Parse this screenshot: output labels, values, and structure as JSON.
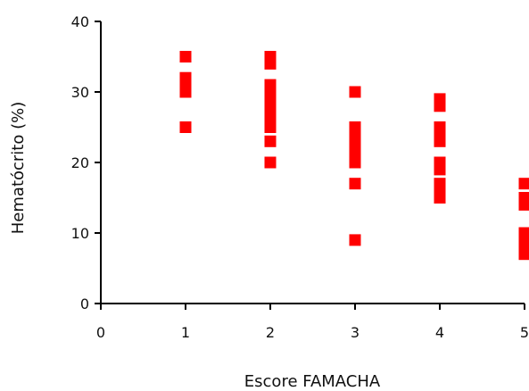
{
  "chart_data": {
    "type": "scatter",
    "xlabel": "Escore FAMACHA",
    "ylabel": "Hematócrito (%)",
    "xlim": [
      0,
      5
    ],
    "ylim": [
      0,
      40
    ],
    "xticks": [
      "0",
      "1",
      "2",
      "3",
      "4",
      "5"
    ],
    "yticks": [
      "0",
      "10",
      "20",
      "30",
      "40"
    ],
    "grid": false,
    "marker_color": "#ff0000",
    "points": [
      {
        "x": 1,
        "y": 35
      },
      {
        "x": 1,
        "y": 32
      },
      {
        "x": 1,
        "y": 31
      },
      {
        "x": 1,
        "y": 30
      },
      {
        "x": 1,
        "y": 25
      },
      {
        "x": 2,
        "y": 35
      },
      {
        "x": 2,
        "y": 34
      },
      {
        "x": 2,
        "y": 31
      },
      {
        "x": 2,
        "y": 30
      },
      {
        "x": 2,
        "y": 29
      },
      {
        "x": 2,
        "y": 28
      },
      {
        "x": 2,
        "y": 27
      },
      {
        "x": 2,
        "y": 26
      },
      {
        "x": 2,
        "y": 25
      },
      {
        "x": 2,
        "y": 23
      },
      {
        "x": 2,
        "y": 20
      },
      {
        "x": 3,
        "y": 30
      },
      {
        "x": 3,
        "y": 25
      },
      {
        "x": 3,
        "y": 24
      },
      {
        "x": 3,
        "y": 23
      },
      {
        "x": 3,
        "y": 22
      },
      {
        "x": 3,
        "y": 21
      },
      {
        "x": 3,
        "y": 20
      },
      {
        "x": 3,
        "y": 17
      },
      {
        "x": 3,
        "y": 9
      },
      {
        "x": 4,
        "y": 29
      },
      {
        "x": 4,
        "y": 28
      },
      {
        "x": 4,
        "y": 25
      },
      {
        "x": 4,
        "y": 24
      },
      {
        "x": 4,
        "y": 23
      },
      {
        "x": 4,
        "y": 20
      },
      {
        "x": 4,
        "y": 19
      },
      {
        "x": 4,
        "y": 17
      },
      {
        "x": 4,
        "y": 16
      },
      {
        "x": 4,
        "y": 15
      },
      {
        "x": 5,
        "y": 17
      },
      {
        "x": 5,
        "y": 15
      },
      {
        "x": 5,
        "y": 14
      },
      {
        "x": 5,
        "y": 10
      },
      {
        "x": 5,
        "y": 9
      },
      {
        "x": 5,
        "y": 8
      },
      {
        "x": 5,
        "y": 7
      }
    ]
  }
}
